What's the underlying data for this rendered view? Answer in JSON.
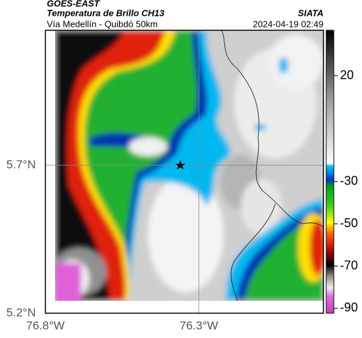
{
  "header": {
    "title": "GOES-EAST",
    "subtitle": "Temperatura de Brillo CH13",
    "route": "Vía Medellín - Quibdó 50km",
    "source": "SIATA",
    "datetime": "2024-04-19 02:49"
  },
  "map": {
    "lonlim": [
      -76.8,
      -75.894
    ],
    "latlim": [
      5.2,
      6.156
    ],
    "xticks": [
      {
        "value": -76.8,
        "label": "76.8°W"
      },
      {
        "value": -76.3,
        "label": "76.3°W"
      }
    ],
    "yticks": [
      {
        "value": 5.2,
        "label": "5.2°N"
      },
      {
        "value": 5.7,
        "label": "5.7°N"
      }
    ]
  },
  "colorbar": {
    "lim": [
      -92.3,
      41.5
    ],
    "ticks": [
      20,
      -30,
      -50,
      -70,
      -90
    ]
  }
}
